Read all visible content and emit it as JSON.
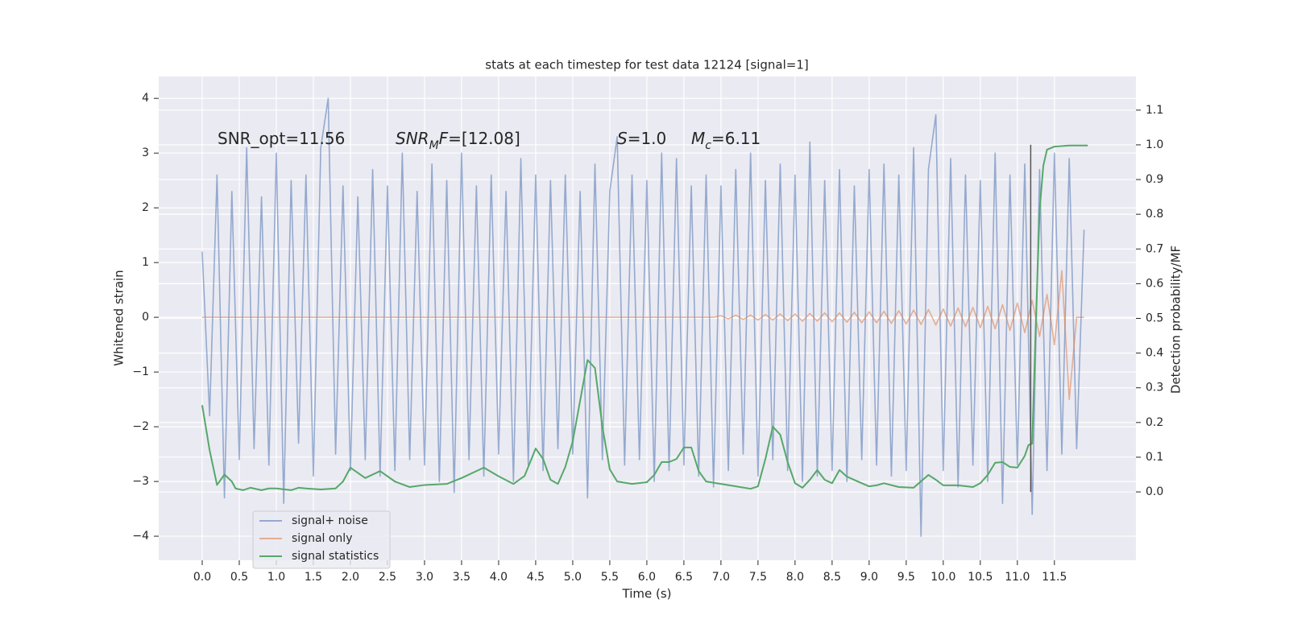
{
  "chart_data": {
    "type": "line",
    "title": "stats at each timestep for test data 12124 [signal=1]",
    "xlabel": "Time (s)",
    "ylabel": "Whitened strain",
    "y2label": "Detection probability/MF",
    "annotations": [
      [
        "SNR_opt=11.56"
      ],
      [
        "SNR",
        "M",
        "F",
        "=[12.08]"
      ],
      [
        "S",
        "=1.0"
      ],
      [
        "M",
        "c",
        "=6.11"
      ]
    ],
    "x": [
      0.0,
      0.1,
      0.2,
      0.3,
      0.4,
      0.5,
      0.6,
      0.7,
      0.8,
      0.9,
      1.0,
      1.1,
      1.2,
      1.3,
      1.4,
      1.5,
      1.6,
      1.7,
      1.8,
      1.9,
      2.0,
      2.1,
      2.2,
      2.3,
      2.4,
      2.5,
      2.6,
      2.7,
      2.8,
      2.9,
      3.0,
      3.1,
      3.2,
      3.3,
      3.4,
      3.5,
      3.6,
      3.7,
      3.8,
      3.9,
      4.0,
      4.1,
      4.2,
      4.3,
      4.4,
      4.5,
      4.6,
      4.7,
      4.8,
      4.9,
      5.0,
      5.1,
      5.2,
      5.3,
      5.4,
      5.5,
      5.6,
      5.7,
      5.8,
      5.9,
      6.0,
      6.1,
      6.2,
      6.3,
      6.4,
      6.5,
      6.6,
      6.7,
      6.8,
      6.9,
      7.0,
      7.1,
      7.2,
      7.3,
      7.4,
      7.5,
      7.6,
      7.7,
      7.8,
      7.9,
      8.0,
      8.1,
      8.2,
      8.3,
      8.4,
      8.5,
      8.6,
      8.7,
      8.8,
      8.9,
      9.0,
      9.1,
      9.2,
      9.3,
      9.4,
      9.5,
      9.6,
      9.7,
      9.8,
      9.9,
      10.0,
      10.1,
      10.2,
      10.3,
      10.4,
      10.5,
      10.6,
      10.7,
      10.8,
      10.9,
      11.0,
      11.1,
      11.2,
      11.3,
      11.4,
      11.5,
      11.6,
      11.7,
      11.8,
      11.9
    ],
    "series": [
      {
        "name": "signal+ noise",
        "color": "#4c72b0",
        "opacity": 0.55,
        "values": [
          1.2,
          -1.8,
          2.6,
          -3.3,
          2.3,
          -2.6,
          3.1,
          -2.4,
          2.2,
          -2.7,
          3.0,
          -3.4,
          2.5,
          -2.3,
          2.6,
          -2.9,
          3.1,
          4.0,
          -2.5,
          2.4,
          -2.8,
          2.2,
          -2.6,
          2.7,
          -2.9,
          2.4,
          -2.8,
          3.0,
          -2.6,
          2.3,
          -2.7,
          2.8,
          -3.0,
          2.5,
          -3.2,
          3.0,
          -2.6,
          2.4,
          -2.9,
          2.6,
          -2.5,
          2.3,
          -3.0,
          2.9,
          -2.7,
          2.6,
          -2.8,
          2.5,
          -2.4,
          2.6,
          -2.5,
          2.3,
          -3.3,
          2.8,
          -2.6,
          2.3,
          3.3,
          -2.7,
          2.6,
          -2.6,
          2.5,
          -3.0,
          3.0,
          -2.8,
          2.9,
          -2.7,
          2.4,
          -2.9,
          2.6,
          -3.1,
          2.4,
          -2.8,
          2.7,
          -2.5,
          3.0,
          -2.9,
          2.5,
          -2.6,
          2.8,
          -2.8,
          2.6,
          -3.0,
          3.2,
          -2.9,
          2.5,
          -2.8,
          2.7,
          -3.0,
          2.4,
          -2.6,
          2.7,
          -2.7,
          2.8,
          -2.9,
          2.6,
          -2.8,
          3.1,
          -4.0,
          2.7,
          3.7,
          -2.8,
          2.9,
          -3.1,
          2.6,
          -2.7,
          2.5,
          -3.0,
          3.0,
          -3.4,
          2.6,
          -2.7,
          2.8,
          -3.6,
          2.7,
          -2.8,
          3.0,
          -2.5,
          2.9,
          -2.4,
          1.6
        ]
      },
      {
        "name": "signal only",
        "color": "#dd8452",
        "opacity": 0.6,
        "values": [
          0,
          0,
          0,
          0,
          0,
          0,
          0,
          0,
          0,
          0,
          0,
          0,
          0,
          0,
          0,
          0,
          0,
          0,
          0,
          0,
          0,
          0,
          0,
          0,
          0,
          0,
          0,
          0,
          0,
          0,
          0,
          0,
          0,
          0,
          0,
          0,
          0,
          0,
          0,
          0,
          0,
          0,
          0,
          0,
          0,
          0,
          0,
          0,
          0,
          0,
          0,
          0,
          0,
          0,
          0,
          0,
          0,
          0,
          0,
          0,
          0,
          0,
          0,
          0,
          0,
          0,
          0,
          0,
          0,
          0,
          0.03,
          -0.03,
          0.04,
          -0.04,
          0.04,
          -0.05,
          0.05,
          -0.05,
          0.06,
          -0.06,
          0.06,
          -0.07,
          0.07,
          -0.07,
          0.08,
          -0.08,
          0.08,
          -0.09,
          0.09,
          -0.1,
          0.1,
          -0.1,
          0.11,
          -0.11,
          0.12,
          -0.12,
          0.13,
          -0.13,
          0.14,
          -0.14,
          0.15,
          -0.16,
          0.17,
          -0.17,
          0.18,
          -0.19,
          0.2,
          -0.21,
          0.23,
          -0.24,
          0.26,
          -0.28,
          0.31,
          -0.35,
          0.42,
          -0.5,
          0.85,
          -1.5,
          0,
          0
        ]
      },
      {
        "name": "signal statistics",
        "color": "#55a868",
        "opacity": 1,
        "axis": "y2",
        "x": [
          0,
          0.1,
          0.2,
          0.3,
          0.4,
          0.45,
          0.55,
          0.65,
          0.8,
          0.9,
          1.0,
          1.2,
          1.3,
          1.4,
          1.6,
          1.8,
          1.9,
          2.0,
          2.2,
          2.4,
          2.6,
          2.8,
          3.0,
          3.3,
          3.5,
          3.8,
          4.0,
          4.2,
          4.35,
          4.5,
          4.6,
          4.7,
          4.8,
          4.9,
          5.0,
          5.2,
          5.3,
          5.4,
          5.5,
          5.6,
          5.8,
          6.0,
          6.1,
          6.2,
          6.3,
          6.4,
          6.5,
          6.6,
          6.7,
          6.8,
          7.0,
          7.2,
          7.4,
          7.5,
          7.6,
          7.7,
          7.8,
          7.9,
          8.0,
          8.1,
          8.2,
          8.3,
          8.4,
          8.5,
          8.6,
          8.7,
          8.9,
          9.0,
          9.1,
          9.2,
          9.4,
          9.6,
          9.8,
          9.9,
          10.0,
          10.2,
          10.4,
          10.5,
          10.6,
          10.7,
          10.8,
          10.9,
          11.0,
          11.1,
          11.15,
          11.2,
          11.25,
          11.3,
          11.35,
          11.4,
          11.5,
          11.7,
          11.95
        ],
        "values": [
          0.25,
          0.12,
          0.02,
          0.05,
          0.03,
          0.01,
          0.005,
          0.012,
          0.005,
          0.01,
          0.01,
          0.005,
          0.012,
          0.01,
          0.007,
          0.01,
          0.03,
          0.07,
          0.04,
          0.06,
          0.03,
          0.014,
          0.02,
          0.023,
          0.04,
          0.07,
          0.045,
          0.023,
          0.046,
          0.125,
          0.095,
          0.035,
          0.023,
          0.072,
          0.146,
          0.38,
          0.357,
          0.188,
          0.065,
          0.03,
          0.023,
          0.028,
          0.049,
          0.086,
          0.086,
          0.095,
          0.128,
          0.128,
          0.06,
          0.03,
          0.023,
          0.016,
          0.009,
          0.016,
          0.095,
          0.188,
          0.165,
          0.086,
          0.025,
          0.012,
          0.035,
          0.063,
          0.035,
          0.025,
          0.063,
          0.044,
          0.025,
          0.016,
          0.019,
          0.025,
          0.014,
          0.012,
          0.049,
          0.035,
          0.019,
          0.019,
          0.014,
          0.025,
          0.049,
          0.084,
          0.086,
          0.072,
          0.07,
          0.104,
          0.135,
          0.139,
          0.49,
          0.81,
          0.94,
          0.986,
          0.995,
          0.998,
          0.998
        ]
      }
    ],
    "marker_line": {
      "x": 11.18,
      "y2": [
        0,
        1.0
      ],
      "color": "#555555"
    },
    "xlim": [
      -0.587,
      12.6
    ],
    "xticks": [
      {
        "value": 0,
        "label": "0.0"
      },
      0.5,
      {
        "value": 1,
        "label": "1.0"
      },
      1.5,
      {
        "value": 2,
        "label": "2.0"
      },
      2.5,
      {
        "value": 3,
        "label": "3.0"
      },
      3.5,
      {
        "value": 4,
        "label": "4.0"
      },
      4.5,
      {
        "value": 5,
        "label": "5.0"
      },
      5.5,
      {
        "value": 6,
        "label": "6.0"
      },
      6.5,
      {
        "value": 7,
        "label": "7.0"
      },
      7.5,
      {
        "value": 8,
        "label": "8.0"
      },
      8.5,
      {
        "value": 9,
        "label": "9.0"
      },
      9.5,
      {
        "value": 10,
        "label": "10.0"
      },
      10.5,
      {
        "value": 11,
        "label": "11.0"
      },
      11.5
    ],
    "ylim": [
      -4.44,
      4.4
    ],
    "yticks": [
      {
        "value": -4,
        "label": "−4"
      },
      {
        "value": -3,
        "label": "−3"
      },
      {
        "value": -2,
        "label": "−2"
      },
      {
        "value": -1,
        "label": "−1"
      },
      0,
      1,
      2,
      3,
      4
    ],
    "y2lim": [
      -0.197,
      1.197
    ],
    "y2ticks": [
      {
        "value": 0,
        "label": "0.0"
      },
      0.1,
      0.2,
      0.3,
      0.4,
      0.5,
      0.6,
      0.7,
      0.8,
      0.9,
      {
        "value": 1,
        "label": "1.0"
      },
      1.1
    ],
    "grid": true,
    "legend": "lower left"
  }
}
